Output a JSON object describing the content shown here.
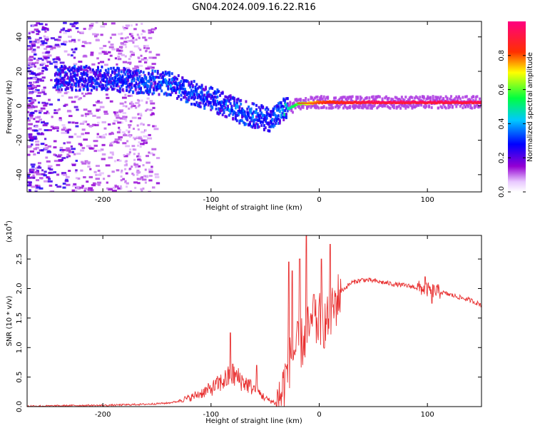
{
  "title": "GN04.2024.009.16.22.R16",
  "chart_data": [
    {
      "type": "heatmap",
      "xlabel": "Height of straight line (km)",
      "ylabel": "Frequency (Hz)",
      "xlim": [
        -270,
        150
      ],
      "ylim": [
        -50,
        49
      ],
      "xticks": [
        -200,
        -100,
        0,
        100
      ],
      "yticks": [
        -40,
        -20,
        0,
        20,
        40
      ],
      "colorbar": {
        "label": "Normalized spectral amplitude",
        "range": [
          0,
          1
        ],
        "ticks": [
          "0.0",
          "0.2",
          "0.4",
          "0.6",
          "0.8"
        ],
        "colormap": [
          "#ffffff",
          "#9400d3",
          "#0000ff",
          "#00c8ff",
          "#00ff40",
          "#ffff00",
          "#ff3000",
          "#ff0080"
        ]
      },
      "ridge": {
        "x": [
          -240,
          -200,
          -170,
          -140,
          -120,
          -100,
          -80,
          -60,
          -45,
          -35,
          -20,
          0,
          50,
          100,
          150
        ],
        "freq": [
          16,
          16,
          14,
          13,
          8,
          4,
          -2,
          -6,
          -8,
          -3,
          1,
          2,
          2,
          2,
          2
        ],
        "amplitude": [
          0.25,
          0.25,
          0.3,
          0.35,
          0.3,
          0.3,
          0.35,
          0.35,
          0.3,
          0.4,
          0.6,
          0.8,
          0.95,
          0.95,
          0.95
        ]
      }
    },
    {
      "type": "line",
      "xlabel": "Height of straight line (km)",
      "ylabel": "SNR (10 * v/v)",
      "multiplier": "(x10",
      "multiplier_exp": "4",
      "multiplier_close": ")",
      "xlim": [
        -270,
        150
      ],
      "ylim": [
        0,
        2.9
      ],
      "xticks": [
        -200,
        -100,
        0,
        100
      ],
      "yticks": [
        "0.0",
        "0.5",
        "1.0",
        "1.5",
        "2.0",
        "2.5"
      ],
      "color": "#e83030",
      "series": [
        {
          "x": [
            -270,
            -250,
            -220,
            -200,
            -180,
            -160,
            -140,
            -120,
            -100,
            -90,
            -80,
            -70,
            -60,
            -50,
            -40,
            -35,
            -30,
            -25,
            -20,
            -15,
            -10,
            -5,
            0,
            5,
            10,
            15,
            20,
            30,
            40,
            50,
            60,
            70,
            80,
            90,
            100,
            110,
            120,
            130,
            140,
            150
          ],
          "values": [
            0.01,
            0.01,
            0.02,
            0.02,
            0.03,
            0.04,
            0.06,
            0.12,
            0.25,
            0.35,
            0.45,
            0.35,
            0.25,
            0.12,
            0.04,
            0.2,
            0.6,
            0.9,
            1.0,
            1.1,
            1.3,
            1.3,
            1.5,
            1.4,
            1.5,
            1.75,
            1.95,
            2.1,
            2.15,
            2.13,
            2.1,
            2.07,
            2.05,
            2.02,
            1.98,
            1.95,
            1.9,
            1.85,
            1.8,
            1.72
          ],
          "spikes": [
            {
              "x": -82,
              "y": 1.25
            },
            {
              "x": -58,
              "y": 0.7
            },
            {
              "x": -28,
              "y": 2.45
            },
            {
              "x": -25,
              "y": 2.3
            },
            {
              "x": -18,
              "y": 2.5
            },
            {
              "x": -12,
              "y": 2.9
            },
            {
              "x": -5,
              "y": 1.9
            },
            {
              "x": 2,
              "y": 2.5
            },
            {
              "x": 10,
              "y": 2.75
            },
            {
              "x": 98,
              "y": 2.2
            },
            {
              "x": 104,
              "y": 1.75
            }
          ]
        }
      ]
    }
  ]
}
